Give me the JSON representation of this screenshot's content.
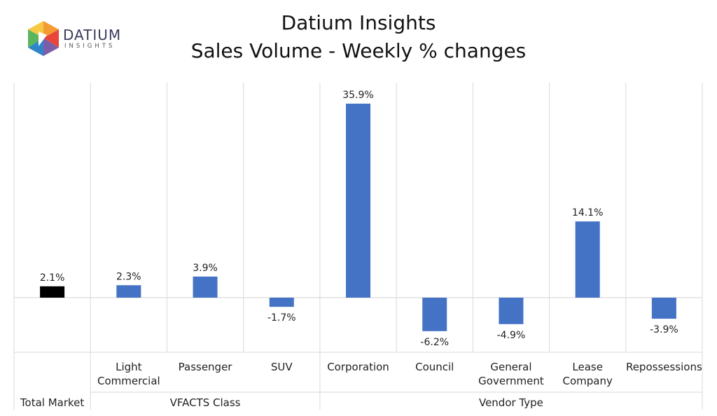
{
  "header": {
    "logo_word": "DATIUM",
    "logo_sub": "INSIGHTS",
    "title_line1": "Datium Insights",
    "title_line2": "Sales Volume - Weekly % changes"
  },
  "colors": {
    "total": "#000000",
    "bar": "#4472C4",
    "grid": "#d9d9d9",
    "logo_orange": "#F39C33",
    "logo_red": "#E8463A",
    "logo_blue": "#2E86C8",
    "logo_green": "#5BB55E",
    "logo_purple": "#7B5EA7"
  },
  "chart_data": {
    "type": "bar",
    "title": "Sales Volume - Weekly % changes",
    "categories": [
      [
        "Total Market"
      ],
      [
        "Light",
        "Commercial"
      ],
      [
        "Passenger"
      ],
      [
        "SUV"
      ],
      [
        "Corporation"
      ],
      [
        "Council"
      ],
      [
        "General",
        "Government"
      ],
      [
        "Lease",
        "Company"
      ],
      [
        "Repossessions"
      ]
    ],
    "values": [
      2.1,
      2.3,
      3.9,
      -1.7,
      35.9,
      -6.2,
      -4.9,
      14.1,
      -3.9
    ],
    "value_labels": [
      "2.1%",
      "2.3%",
      "3.9%",
      "-1.7%",
      "35.9%",
      "-6.2%",
      "-4.9%",
      "14.1%",
      "-3.9%"
    ],
    "groups": [
      {
        "name": "Total Market",
        "from": 0,
        "to": 0
      },
      {
        "name": "VFACTS Class",
        "from": 1,
        "to": 3
      },
      {
        "name": "Vendor Type",
        "from": 4,
        "to": 8
      }
    ],
    "ylim": [
      -10,
      40
    ],
    "unit": "%",
    "grid": "vertical category separators",
    "legend": "none"
  }
}
